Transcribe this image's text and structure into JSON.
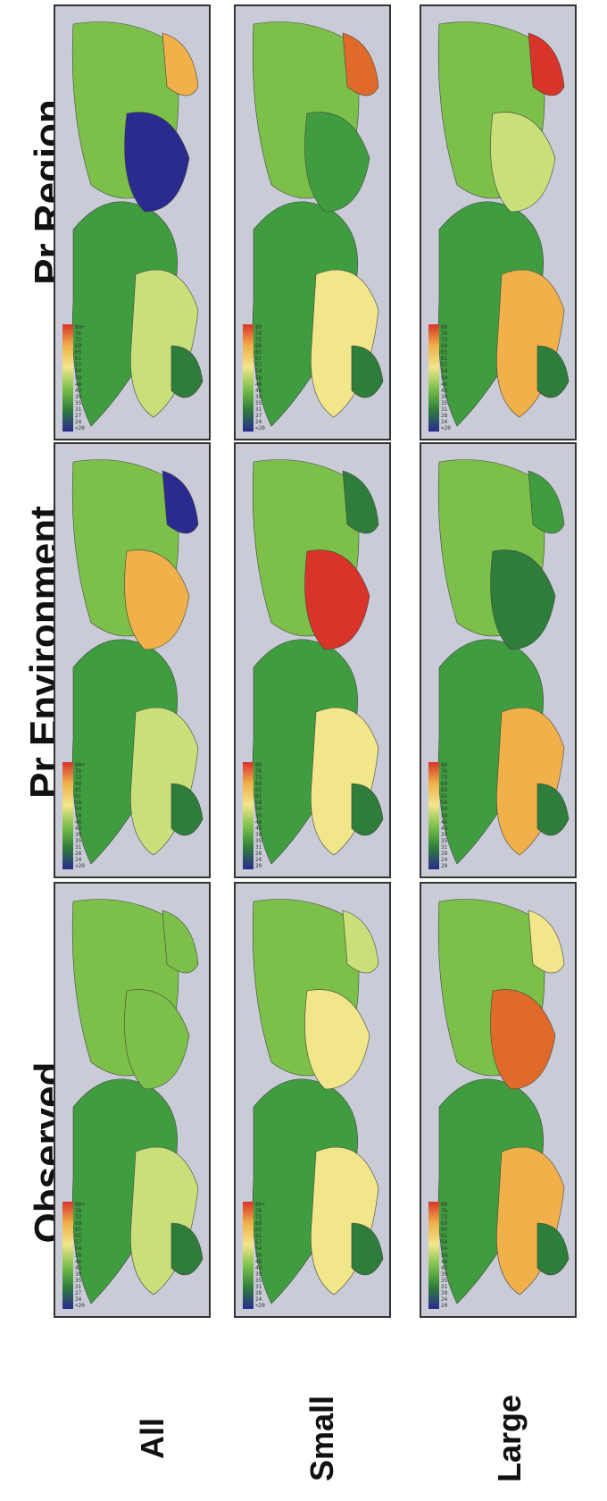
{
  "columns": [
    "Observed",
    "Pr Environment",
    "Pr Region"
  ],
  "rows": [
    "All",
    "Small",
    "Large"
  ],
  "legends": [
    [
      "<20",
      "24",
      "27",
      "31",
      "35",
      "39",
      "42",
      "46",
      "50",
      "54",
      "57",
      "61",
      "65",
      "69",
      "72",
      "76",
      "80+"
    ],
    [
      "<20",
      "24",
      "27",
      "31",
      "35",
      "39",
      "42",
      "46",
      "50",
      "54",
      "57",
      "61",
      "65",
      "69",
      "72",
      "76",
      "80"
    ],
    [
      "<20",
      "24",
      "28",
      "31",
      "35",
      "39",
      "43",
      "46",
      "50",
      "54",
      "57",
      "61",
      "65",
      "69",
      "73",
      "76",
      "80"
    ],
    [
      "<20",
      "24",
      "28",
      "31",
      "35",
      "39",
      "42",
      "46",
      "50",
      "54",
      "58",
      "61",
      "65",
      "69",
      "72",
      "76",
      "80+"
    ],
    [
      "20",
      "24",
      "28",
      "31",
      "35",
      "39",
      "43",
      "46",
      "50",
      "54",
      "58",
      "61",
      "65",
      "69",
      "73",
      "76",
      "80"
    ],
    [
      "20",
      "24",
      "28",
      "31",
      "35",
      "39",
      "43",
      "46",
      "50",
      "54",
      "58",
      "61",
      "65",
      "69",
      "73",
      "76",
      "80"
    ],
    [
      "<20",
      "24",
      "27",
      "31",
      "35",
      "39",
      "42",
      "46",
      "50",
      "54",
      "57",
      "61",
      "65",
      "69",
      "72",
      "76",
      "80+"
    ],
    [
      "<20",
      "24",
      "28",
      "31",
      "35",
      "39",
      "42",
      "46",
      "50",
      "54",
      "57",
      "61",
      "65",
      "69",
      "72",
      "76",
      "80+"
    ],
    [
      "20",
      "24",
      "28",
      "31",
      "35",
      "39",
      "43",
      "46",
      "50",
      "54",
      "58",
      "61",
      "65",
      "69",
      "73",
      "76",
      "80"
    ]
  ],
  "colors": {
    "ocean": "#c9ccd6",
    "low": "#2a2a8f",
    "mid": "#3f9c3f",
    "high": "#d8342a"
  }
}
